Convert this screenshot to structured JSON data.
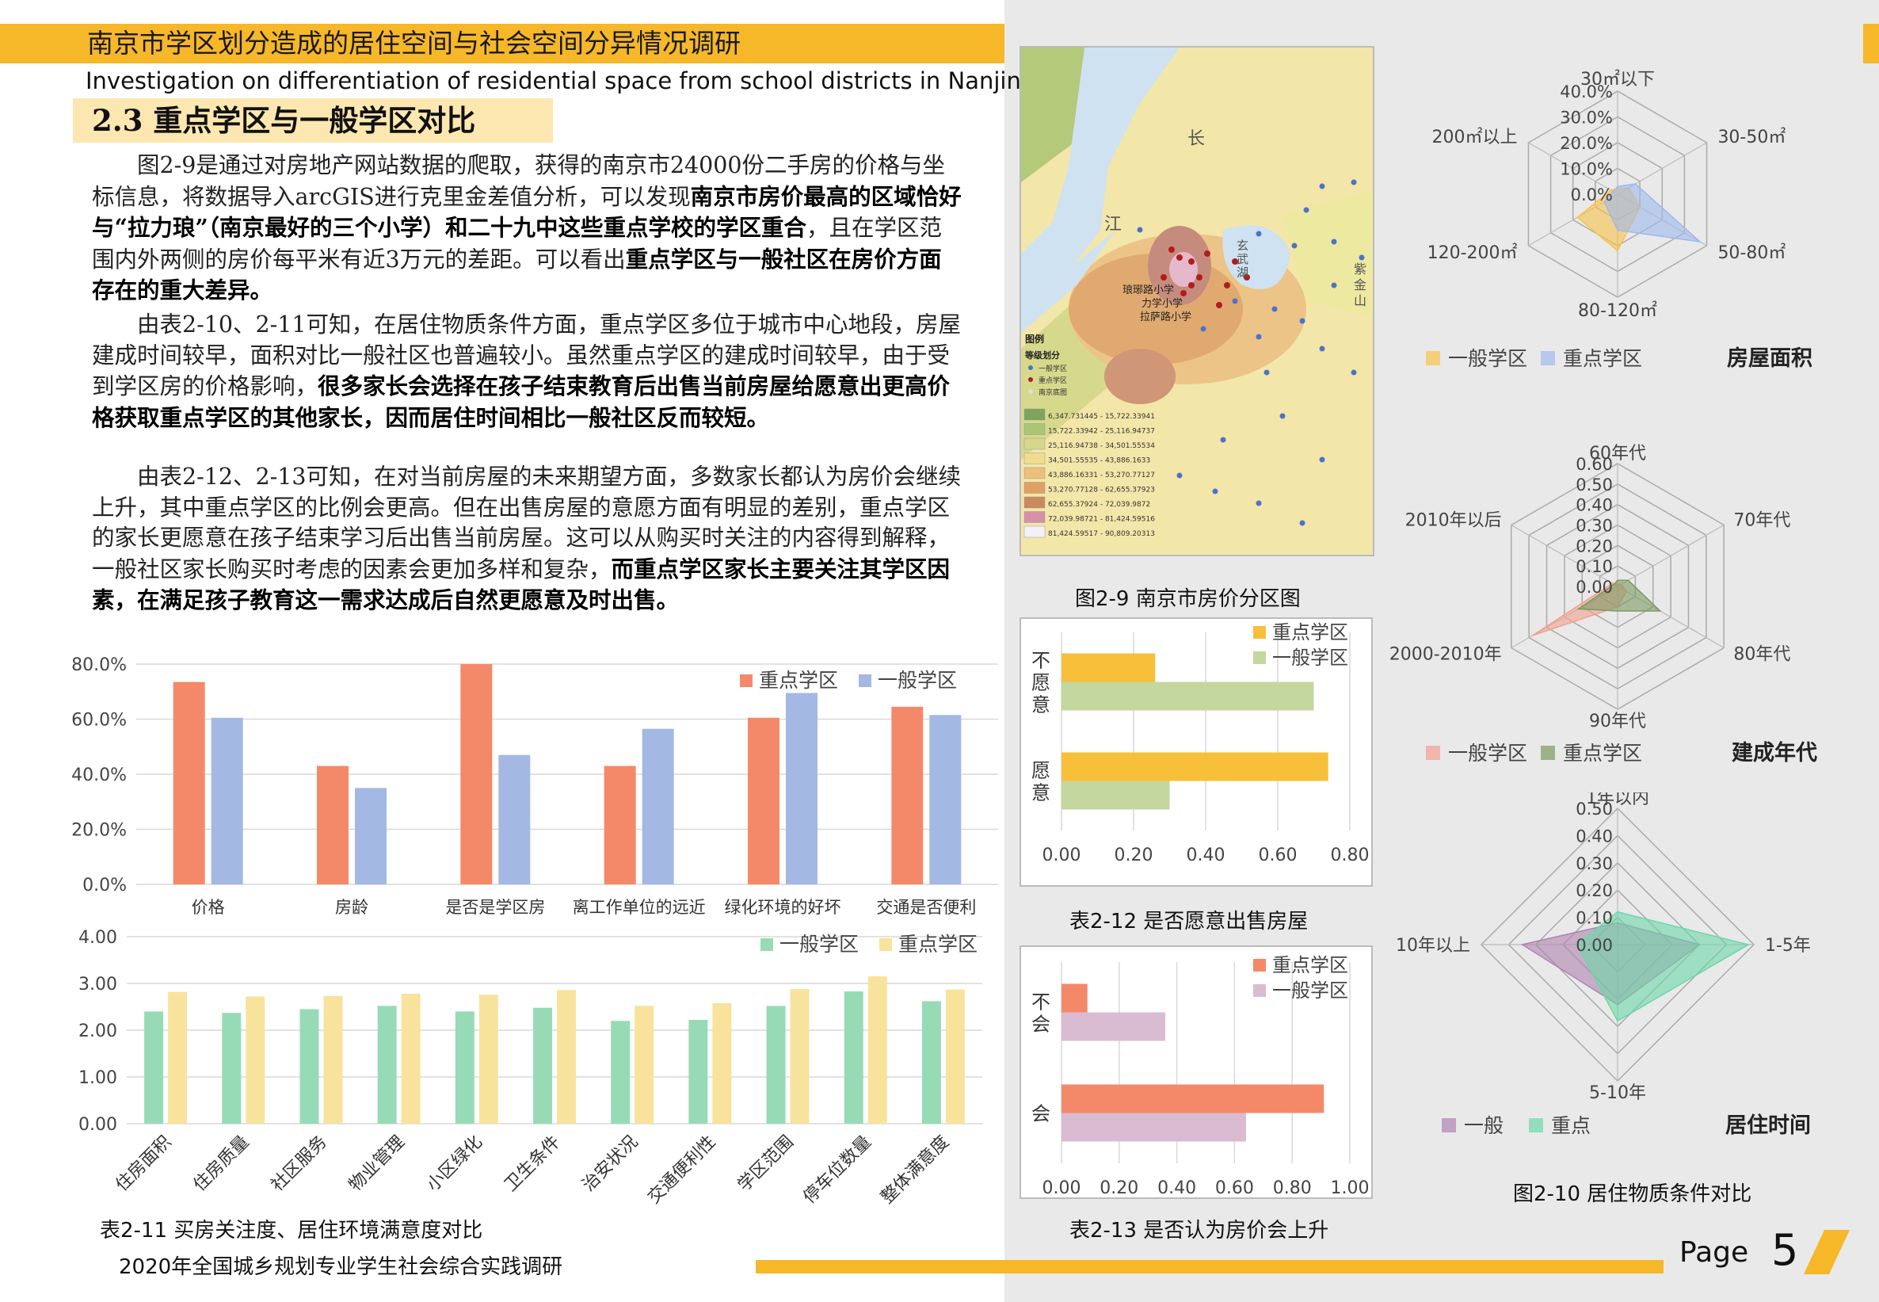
{
  "header": {
    "title_cn": "南京市学区划分造成的居住空间与社会空间分异情况调研",
    "title_en": "Investigation on differentiation of residential space from school districts in Nanjing",
    "section": "2.3 重点学区与一般学区对比"
  },
  "body": {
    "p1a": "图2-9是通过对房地产网站数据的爬取，获得的南京市24000份二手房的价格与坐标信息，将数据导入arcGIS进行克里金差值分析，可以发现",
    "p1b": "南京市房价最高的区域恰好与“拉力琅”（南京最好的三个小学）和二十九中这些重点学校的学区重合",
    "p1c": "，且在学区范围内外两侧的房价每平米有近3万元的差距。可以看出",
    "p1d": "重点学区与一般社区在房价方面存在的重大差异。",
    "p2a": "由表2-10、2-11可知，在居住物质条件方面，重点学区多位于城市中心地段，房屋建成时间较早，面积对比一般社区也普遍较小。虽然重点学区的建成时间较早，由于受到学区房的价格影响，",
    "p2b": "很多家长会选择在孩子结束教育后出售当前房屋给愿意出更高价格获取重点学区的其他家长，因而居住时间相比一般社区反而较短。",
    "p3a": "由表2-12、2-13可知，在对当前房屋的未来期望方面，多数家长都认为房价会继续上升，其中重点学区的比例会更高。但在出售房屋的意愿方面有明显的差别，重点学区的家长更愿意在孩子结束学习后出售当前房屋。这可以从购买时关注的内容得到解释，一般社区家长购买时考虑的因素会更加多样和复杂，",
    "p3b": "而重点学区家长主要关注其学区因素，在满足孩子教育这一需求达成后自然更愿意及时出售。"
  },
  "map": {
    "caption": "图2-9 南京市房价分区图",
    "labels": {
      "river1": "长",
      "river2": "江",
      "lake1": "玄",
      "lake2": "武",
      "lake3": "湖",
      "mtn1": "紫",
      "mtn2": "金",
      "mtn3": "山",
      "s1": "琅琊路小学",
      "s2": "力学小学",
      "s3": "拉萨路小学"
    },
    "legend_title": "图例",
    "legend_sub": "等级划分",
    "legend_sym": [
      "一般学区",
      "重点学区",
      "南京底图"
    ],
    "legend_ranges": [
      "6,347.731445 - 15,722.33941",
      "15,722.33942 - 25,116.94737",
      "25,116.94738 - 34,501.55534",
      "34,501.55535 - 43,886.1633",
      "43,886.16331 - 53,270.77127",
      "53,270.77128 - 62,655.37923",
      "62,655.37924 - 72,039.9872",
      "72,039.98721 - 81,424.59516",
      "81,424.59517 - 90,809.20313"
    ],
    "legend_colors": [
      "#7da45a",
      "#a9c674",
      "#d4d88a",
      "#f0dc8c",
      "#ebc079",
      "#dfa064",
      "#c98a5e",
      "#d690a8",
      "#f5f0f5"
    ]
  },
  "chart_data": [
    {
      "id": "bar-2-10",
      "type": "bar",
      "categories": [
        "价格",
        "房龄",
        "是否是学区房",
        "离工作单位的远近",
        "绿化环境的好坏",
        "交通是否便利"
      ],
      "series": [
        {
          "name": "重点学区",
          "color": "#f4896a",
          "values": [
            73.5,
            43,
            80,
            43,
            60.5,
            64.5
          ]
        },
        {
          "name": "一般学区",
          "color": "#a3b8e3",
          "values": [
            60.5,
            35,
            47,
            56.5,
            69.5,
            61.5
          ]
        }
      ],
      "y_ticks": [
        "0.0%",
        "20.0%",
        "40.0%",
        "60.0%",
        "80.0%"
      ],
      "ylim": [
        0,
        80
      ]
    },
    {
      "id": "bar-2-11",
      "type": "bar",
      "title": "表2-11 买房关注度、居住环境满意度对比",
      "categories": [
        "住房面积",
        "住房质量",
        "社区服务",
        "物业管理",
        "小区绿化",
        "卫生条件",
        "治安状况",
        "交通便利性",
        "学区范围",
        "停车位数量",
        "整体满意度"
      ],
      "series": [
        {
          "name": "一般学区",
          "color": "#97dbb6",
          "values": [
            2.4,
            2.37,
            2.45,
            2.52,
            2.4,
            2.48,
            2.2,
            2.22,
            2.52,
            2.83,
            2.62
          ]
        },
        {
          "name": "重点学区",
          "color": "#f8e39d",
          "values": [
            2.82,
            2.72,
            2.73,
            2.78,
            2.76,
            2.86,
            2.52,
            2.58,
            2.88,
            3.15,
            2.87
          ]
        }
      ],
      "y_ticks": [
        "0.00",
        "1.00",
        "2.00",
        "3.00",
        "4.00"
      ],
      "ylim": [
        0,
        4
      ]
    },
    {
      "id": "hbar-2-12",
      "type": "bar",
      "orientation": "horizontal",
      "title": "表2-12 是否愿意出售房屋",
      "categories": [
        "不愿意",
        "愿意"
      ],
      "series": [
        {
          "name": "重点学区",
          "color": "#f8bf3a",
          "values": [
            0.26,
            0.74
          ]
        },
        {
          "name": "一般学区",
          "color": "#c3d79e",
          "values": [
            0.7,
            0.3
          ]
        }
      ],
      "x_ticks": [
        "0.00",
        "0.20",
        "0.40",
        "0.60",
        "0.80"
      ],
      "xlim": [
        0,
        0.8
      ]
    },
    {
      "id": "hbar-2-13",
      "type": "bar",
      "orientation": "horizontal",
      "title": "表2-13 是否认为房价会上升",
      "categories": [
        "不会",
        "会"
      ],
      "series": [
        {
          "name": "重点学区",
          "color": "#f4896a",
          "values": [
            0.09,
            0.91
          ]
        },
        {
          "name": "一般学区",
          "color": "#d9bcd2",
          "values": [
            0.36,
            0.64
          ]
        }
      ],
      "x_ticks": [
        "0.00",
        "0.20",
        "0.40",
        "0.60",
        "0.80",
        "1.00"
      ],
      "xlim": [
        0,
        1
      ]
    },
    {
      "id": "radar-area",
      "type": "radar",
      "title": "房屋面积",
      "axes": [
        "30㎡以下",
        "30-50㎡",
        "50-80㎡",
        "80-120㎡",
        "120-200㎡",
        "200㎡以上"
      ],
      "ticks": [
        "0.0%",
        "10.0%",
        "20.0%",
        "30.0%",
        "40.0%"
      ],
      "max": 40,
      "series": [
        {
          "name": "一般学区",
          "color": "#f8c34a",
          "values": [
            2,
            5,
            10,
            22,
            18,
            3
          ]
        },
        {
          "name": "重点学区",
          "color": "#9fb9ec",
          "values": [
            3,
            8,
            37,
            14,
            6,
            2
          ]
        }
      ]
    },
    {
      "id": "radar-year",
      "type": "radar",
      "title": "建成年代",
      "axes": [
        "60年代",
        "70年代",
        "80年代",
        "90年代",
        "2000-2010年",
        "2010年以后"
      ],
      "ticks": [
        "0.00",
        "0.10",
        "0.20",
        "0.30",
        "0.40",
        "0.50",
        "0.60"
      ],
      "max": 0.6,
      "series": [
        {
          "name": "一般学区",
          "color": "#f2a090",
          "values": [
            0.01,
            0.02,
            0.05,
            0.1,
            0.48,
            0.03
          ]
        },
        {
          "name": "重点学区",
          "color": "#7c9a60",
          "values": [
            0.03,
            0.06,
            0.24,
            0.12,
            0.22,
            0.02
          ]
        }
      ]
    },
    {
      "id": "radar-time",
      "type": "radar",
      "title": "居住时间",
      "axes": [
        "1年以内",
        "1-5年",
        "5-10年",
        "10年以上"
      ],
      "ticks": [
        "0.00",
        "0.10",
        "0.20",
        "0.30",
        "0.40",
        "0.50"
      ],
      "max": 0.5,
      "series": [
        {
          "name": "一般",
          "color": "#b083b0",
          "values": [
            0.08,
            0.3,
            0.22,
            0.35
          ]
        },
        {
          "name": "重点",
          "color": "#6cd7a8",
          "values": [
            0.12,
            0.48,
            0.28,
            0.15
          ]
        }
      ]
    }
  ],
  "right_caption": "图2-10 居住物质条件对比",
  "footer": {
    "text": "2020年全国城乡规划专业学生社会综合实践调研",
    "page_label": "Page",
    "page_num": "5"
  }
}
